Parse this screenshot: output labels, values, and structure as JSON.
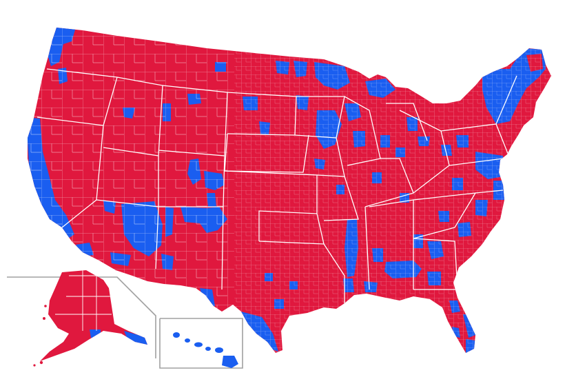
{
  "map": {
    "colors": {
      "background": "#ffffff",
      "red": "#e0183e",
      "blue": "#1a5ef0",
      "borders": "#ffffff",
      "inset_frame": "#a0a0a0"
    },
    "regions": [
      "contiguous-us",
      "alaska-inset",
      "hawaii-inset"
    ]
  }
}
